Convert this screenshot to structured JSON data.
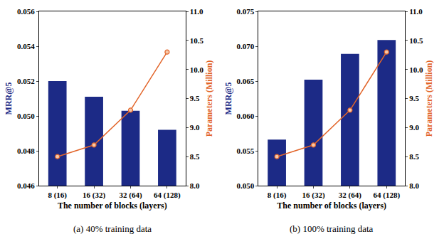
{
  "chart_data": [
    {
      "type": "bar",
      "title": "(a) 40% training data",
      "x_label": "The number of blocks (layers)",
      "y_label": "MRR@5",
      "y2_label": "Parameters (Million)",
      "categories": [
        "8 (16)",
        "16 (32)",
        "32 (64)",
        "64 (128)"
      ],
      "series": [
        {
          "type": "bar",
          "color": "#1c2a86",
          "values": [
            0.052,
            0.0511,
            0.0503,
            0.0492
          ]
        },
        {
          "type": "line",
          "axis": "y2",
          "color": "#e2652a",
          "marker": "circle",
          "values": [
            8.5,
            8.7,
            9.3,
            10.3
          ]
        }
      ],
      "ylim": [
        0.046,
        0.056
      ],
      "yticks": [
        0.046,
        0.048,
        {
          "value": 0.05,
          "label": "0.050"
        },
        0.052,
        0.054,
        0.056
      ],
      "y2lim": [
        8,
        11
      ],
      "y2ticks": [
        {
          "value": 8,
          "label": "8.0"
        },
        8.5,
        {
          "value": 9,
          "label": "9.0"
        },
        9.5,
        {
          "value": 10,
          "label": "10.0"
        },
        10.5,
        {
          "value": 11,
          "label": "11.0"
        }
      ],
      "grid": false
    },
    {
      "type": "bar",
      "title": "(b) 100% training data",
      "x_label": "The number of blocks (layers)",
      "y_label": "MRR@5",
      "y2_label": "Parameters (Million)",
      "categories": [
        "8 (16)",
        "16 (32)",
        "32 (64)",
        "64 (128)"
      ],
      "series": [
        {
          "type": "bar",
          "color": "#1c2a86",
          "values": [
            0.0566,
            0.0652,
            0.0689,
            0.0709
          ]
        },
        {
          "type": "line",
          "axis": "y2",
          "color": "#e2652a",
          "marker": "circle",
          "values": [
            8.5,
            8.7,
            9.3,
            10.3
          ]
        }
      ],
      "ylim": [
        0.05,
        0.075
      ],
      "yticks": [
        {
          "value": 0.05,
          "label": "0.050"
        },
        0.055,
        {
          "value": 0.06,
          "label": "0.060"
        },
        0.065,
        {
          "value": 0.07,
          "label": "0.070"
        },
        0.075
      ],
      "y2lim": [
        8,
        11
      ],
      "y2ticks": [
        {
          "value": 8,
          "label": "8.0"
        },
        8.5,
        {
          "value": 9,
          "label": "9.0"
        },
        9.5,
        {
          "value": 10,
          "label": "10.0"
        },
        10.5,
        {
          "value": 11,
          "label": "11.0"
        }
      ],
      "grid": false
    }
  ]
}
